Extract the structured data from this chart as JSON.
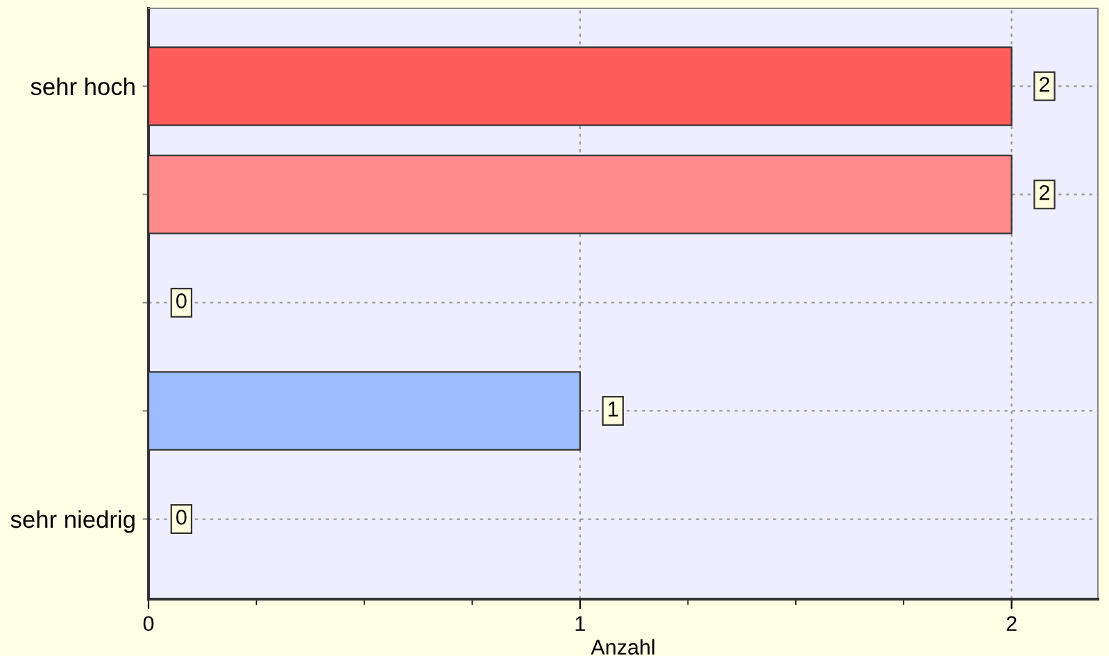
{
  "chart_data": {
    "type": "bar",
    "orientation": "horizontal",
    "xlabel": "Anzahl",
    "categories": [
      "sehr hoch",
      null,
      null,
      null,
      "sehr niedrig"
    ],
    "values": [
      2,
      2,
      0,
      1,
      0
    ],
    "colors": [
      "#ff5c5c",
      "#ff8c8c",
      null,
      "#9dbcff",
      null
    ],
    "xlim": [
      0,
      2.2
    ],
    "xticks": [
      0,
      {
        "value": 0.25,
        "label": null
      },
      {
        "value": 0.5,
        "label": null
      },
      {
        "value": 0.75,
        "label": null
      },
      1,
      {
        "value": 1.25,
        "label": null
      },
      {
        "value": 1.5,
        "label": null
      },
      {
        "value": 1.75,
        "label": null
      },
      2
    ],
    "grid": true,
    "data_labels": true
  }
}
